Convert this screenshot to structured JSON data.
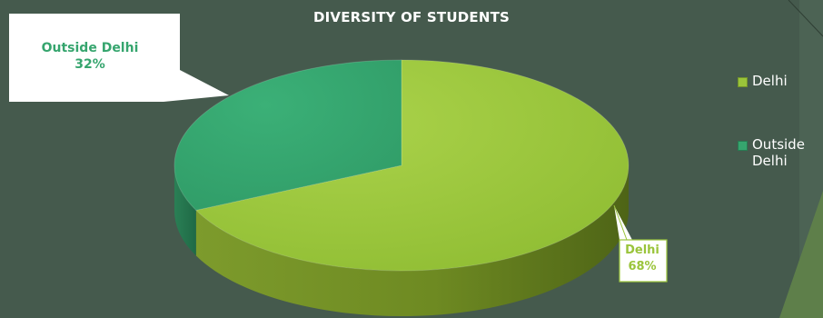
{
  "chart_data": {
    "type": "pie",
    "title": "DIVERSITY OF STUDENTS",
    "categories": [
      "Delhi",
      "Outside Delhi"
    ],
    "values": [
      68,
      32
    ],
    "data_labels": [
      {
        "category": "Delhi",
        "label": "Delhi",
        "value_text": "68%"
      },
      {
        "category": "Outside Delhi",
        "label": "Outside Delhi",
        "value_text": "32%"
      }
    ],
    "legend": {
      "placement": "right",
      "entries": [
        {
          "label": "Delhi",
          "color": "#9ac43a"
        },
        {
          "label": "Outside Delhi",
          "color": "#36a56e"
        }
      ]
    },
    "colors": {
      "Delhi": "#9ac43a",
      "Outside Delhi": "#36a56e"
    },
    "style": "3d-pie"
  },
  "background_color": "#455a4d"
}
